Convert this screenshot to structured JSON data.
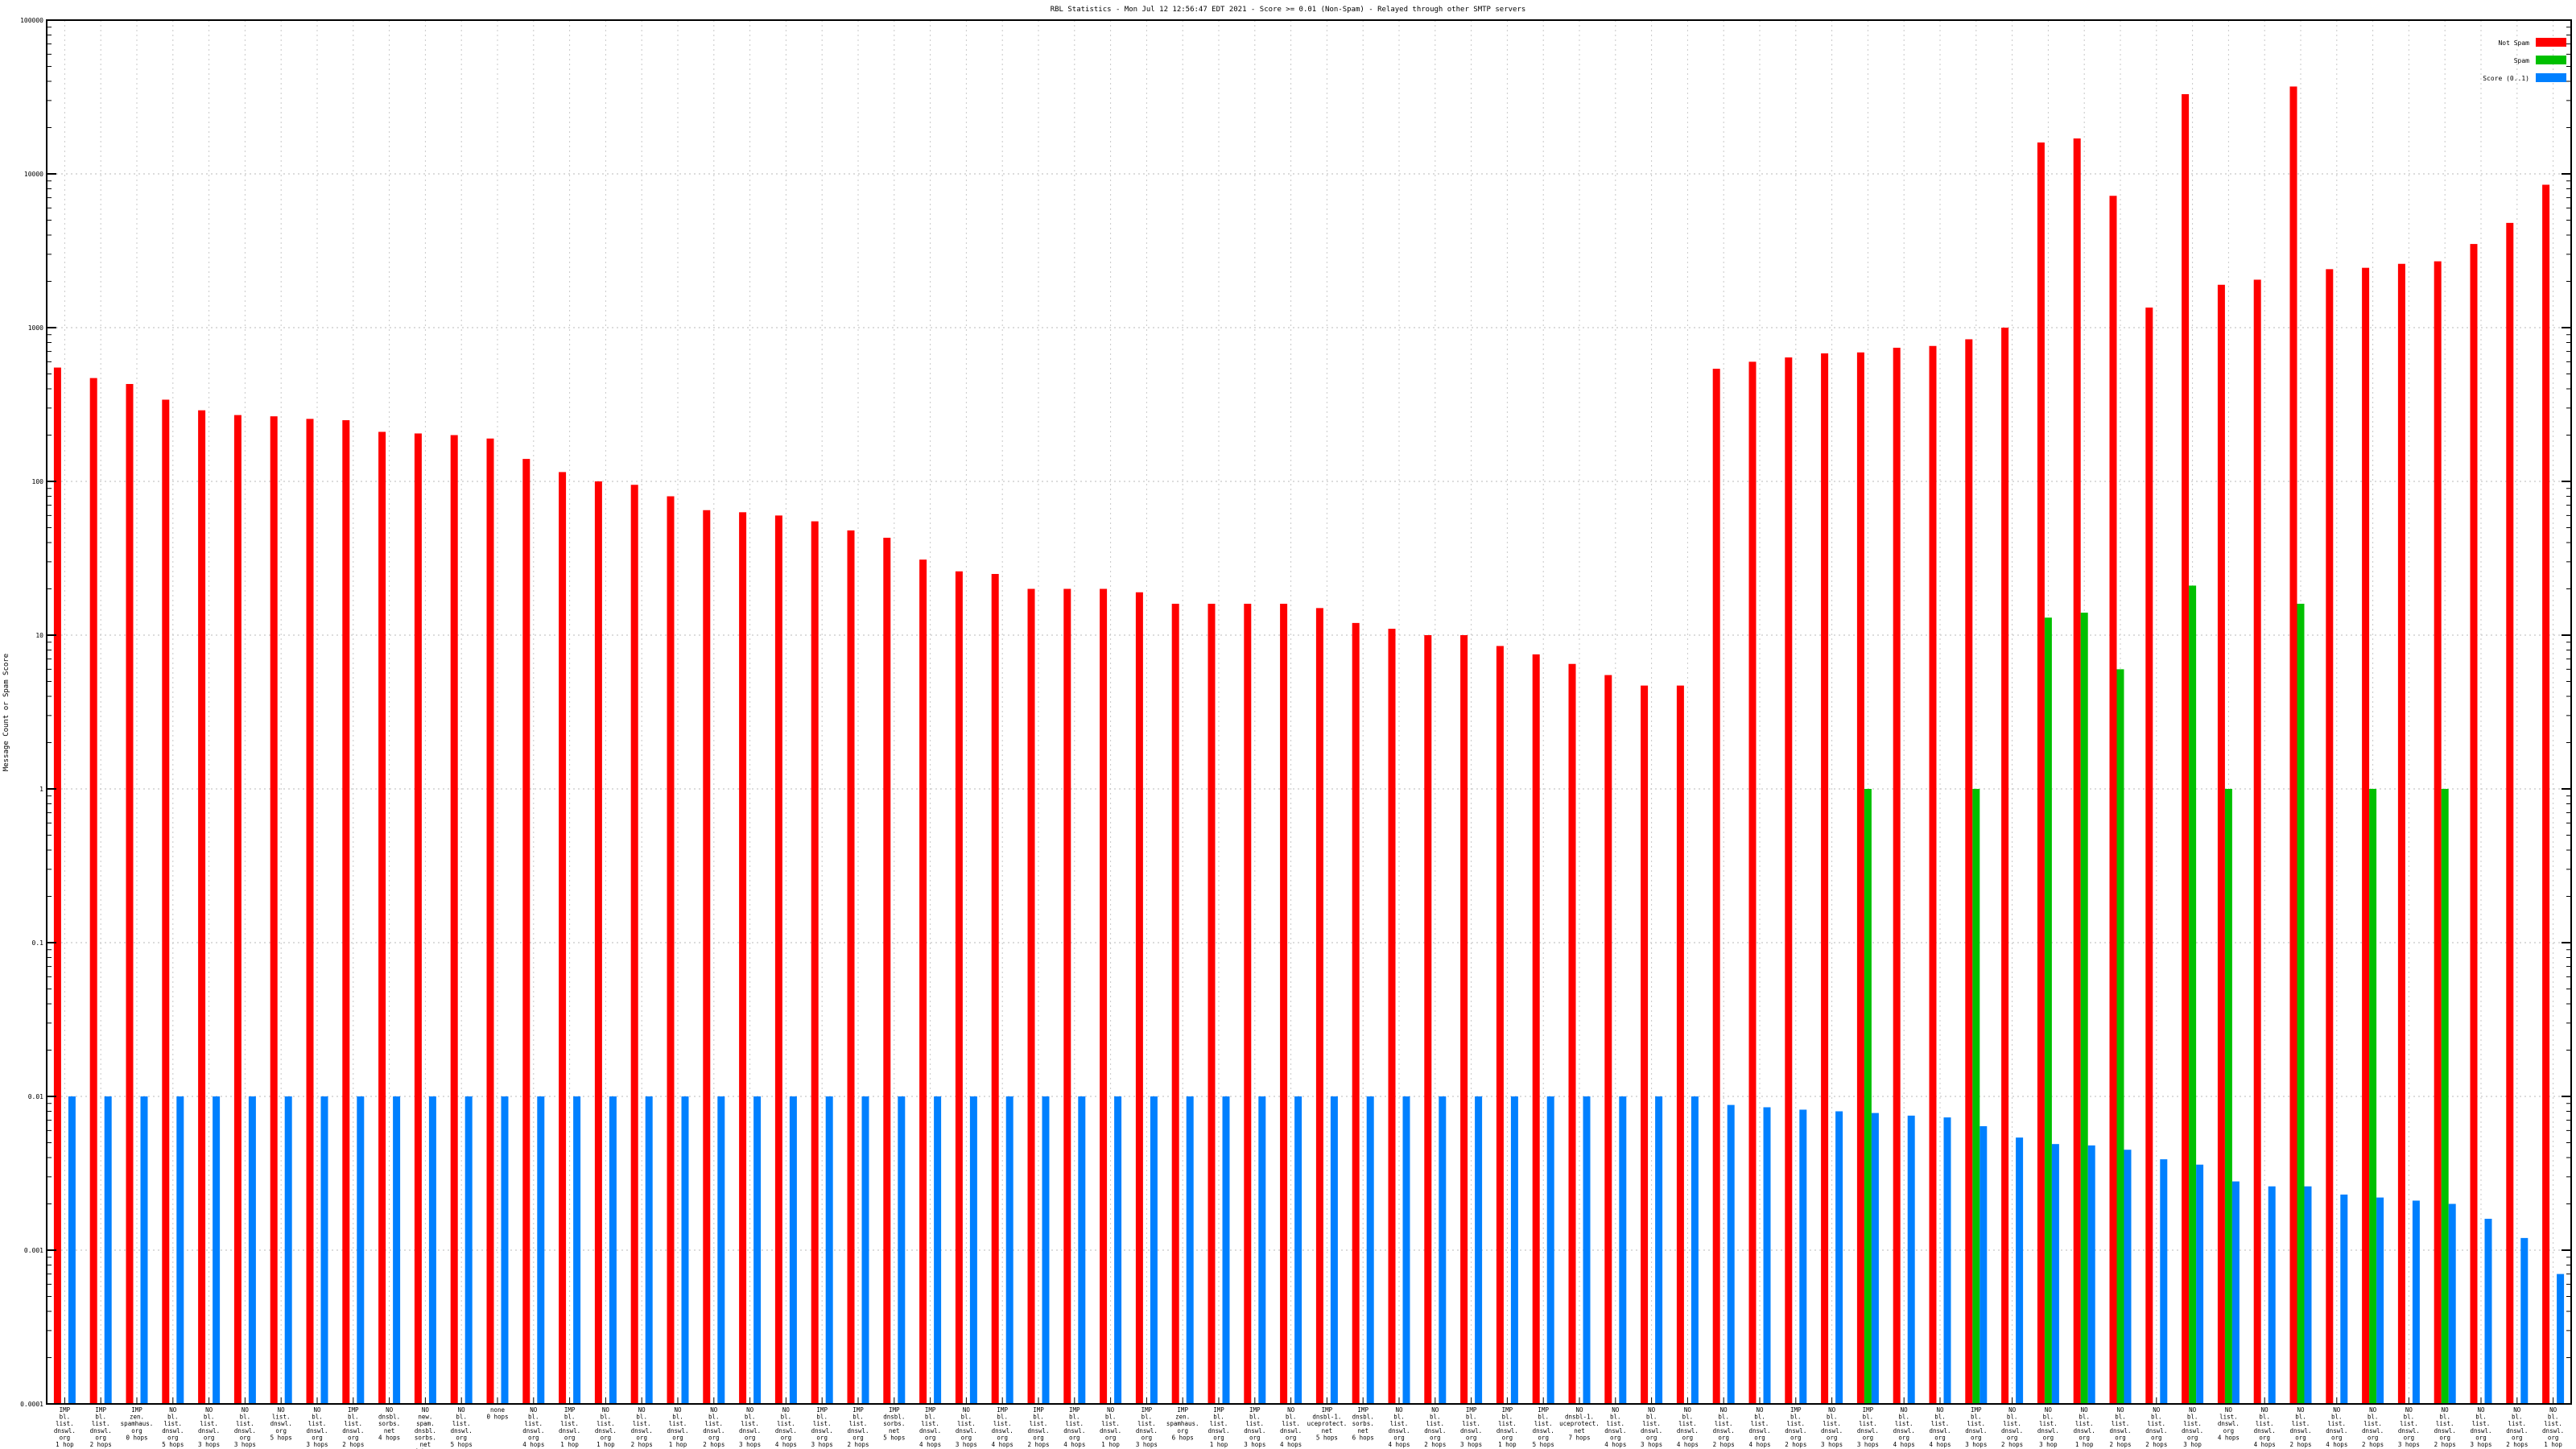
{
  "chart_data": {
    "type": "bar",
    "title": "RBL Statistics - Mon Jul 12 12:56:47 EDT 2021 - Score >= 0.01 (Non-Spam) - Relayed through other SMTP servers",
    "xlabel": "",
    "ylabel": "Message Count or Spam Score",
    "log_scale": true,
    "ylim": [
      0.0001,
      100000
    ],
    "y_ticks": [
      "0.0001",
      "0.001",
      "0.01",
      "0.1",
      "1",
      "10",
      "100",
      "1000",
      "10000",
      "100000"
    ],
    "grid": true,
    "legend_position": "top-right",
    "colors": {
      "not_spam": "#ff0000",
      "spam": "#00c000",
      "score": "#0080ff"
    },
    "series": [
      {
        "name": "Not Spam",
        "values": [
          550,
          470,
          430,
          340,
          290,
          270,
          265,
          255,
          250,
          210,
          205,
          200,
          190,
          140,
          115,
          100,
          95,
          80,
          65,
          63,
          60,
          55,
          48,
          43,
          31,
          26,
          25,
          20,
          20,
          20,
          19,
          16,
          16,
          16,
          16,
          15,
          12,
          11,
          10,
          10,
          8.5,
          7.5,
          6.5,
          5.5,
          4.7,
          4.7,
          540,
          600,
          640,
          680,
          690,
          740,
          760,
          840,
          1000,
          16000,
          17000,
          7200,
          1350,
          33000,
          1900,
          2050,
          37000,
          2400,
          2450,
          2600,
          2700,
          3500,
          4800,
          8500
        ]
      },
      {
        "name": "Spam",
        "values": [
          null,
          null,
          null,
          null,
          null,
          null,
          null,
          null,
          null,
          null,
          null,
          null,
          null,
          null,
          null,
          null,
          null,
          null,
          null,
          null,
          null,
          null,
          null,
          null,
          null,
          null,
          null,
          null,
          null,
          null,
          null,
          null,
          null,
          null,
          null,
          null,
          null,
          null,
          null,
          null,
          null,
          null,
          null,
          null,
          null,
          null,
          null,
          null,
          null,
          null,
          1,
          null,
          null,
          1,
          null,
          13,
          14,
          6,
          null,
          21,
          1,
          null,
          16,
          null,
          1,
          null,
          1,
          null,
          null,
          null
        ]
      },
      {
        "name": "Score (0..1)",
        "values": [
          0.01,
          0.01,
          0.01,
          0.01,
          0.01,
          0.01,
          0.01,
          0.01,
          0.01,
          0.01,
          0.01,
          0.01,
          0.01,
          0.01,
          0.01,
          0.01,
          0.01,
          0.01,
          0.01,
          0.01,
          0.01,
          0.01,
          0.01,
          0.01,
          0.01,
          0.01,
          0.01,
          0.01,
          0.01,
          0.01,
          0.01,
          0.01,
          0.01,
          0.01,
          0.01,
          0.01,
          0.01,
          0.01,
          0.01,
          0.01,
          0.01,
          0.01,
          0.01,
          0.01,
          0.01,
          0.01,
          0.0088,
          0.0085,
          0.0082,
          0.008,
          0.0078,
          0.0075,
          0.0073,
          0.0064,
          0.0054,
          0.0049,
          0.0048,
          0.0045,
          0.0039,
          0.0036,
          0.0028,
          0.0026,
          0.0026,
          0.0023,
          0.0022,
          0.0021,
          0.002,
          0.0016,
          0.0012,
          0.0007
        ]
      }
    ],
    "categories": [
      [
        "IMP",
        "bl.",
        "list.",
        "dnswl.",
        "org",
        "1 hop"
      ],
      [
        "IMP",
        "bl.",
        "list.",
        "dnswl.",
        "org",
        "2 hops"
      ],
      [
        "IMP",
        "zen.",
        "spamhaus.",
        "org",
        "0 hops"
      ],
      [
        "NO",
        "bl.",
        "list.",
        "dnswl.",
        "org",
        "5 hops"
      ],
      [
        "NO",
        "bl.",
        "list.",
        "dnswl.",
        "org",
        "3 hops"
      ],
      [
        "NO",
        "bl.",
        "list.",
        "dnswl.",
        "org",
        "3 hops"
      ],
      [
        "NO",
        "list.",
        "dnswl.",
        "org",
        "5 hops"
      ],
      [
        "NO",
        "bl.",
        "list.",
        "dnswl.",
        "org",
        "3 hops"
      ],
      [
        "IMP",
        "bl.",
        "list.",
        "dnswl.",
        "org",
        "2 hops"
      ],
      [
        "NO",
        "dnsbl.",
        "sorbs.",
        "net",
        "4 hops"
      ],
      [
        "NO",
        "new.",
        "spam.",
        "dnsbl.",
        "sorbs.",
        "net",
        "4 hops"
      ],
      [
        "NO",
        "bl.",
        "list.",
        "dnswl.",
        "org",
        "5 hops"
      ],
      [
        "none",
        "0 hops"
      ],
      [
        "NO",
        "bl.",
        "list.",
        "dnswl.",
        "org",
        "4 hops"
      ],
      [
        "IMP",
        "bl.",
        "list.",
        "dnswl.",
        "org",
        "1 hop"
      ],
      [
        "NO",
        "bl.",
        "list.",
        "dnswl.",
        "org",
        "1 hop"
      ],
      [
        "NO",
        "bl.",
        "list.",
        "dnswl.",
        "org",
        "2 hops"
      ],
      [
        "NO",
        "bl.",
        "list.",
        "dnswl.",
        "org",
        "1 hop"
      ],
      [
        "NO",
        "bl.",
        "list.",
        "dnswl.",
        "org",
        "2 hops"
      ],
      [
        "NO",
        "bl.",
        "list.",
        "dnswl.",
        "org",
        "3 hops"
      ],
      [
        "NO",
        "bl.",
        "list.",
        "dnswl.",
        "org",
        "4 hops"
      ],
      [
        "IMP",
        "bl.",
        "list.",
        "dnswl.",
        "org",
        "3 hops"
      ],
      [
        "IMP",
        "bl.",
        "list.",
        "dnswl.",
        "org",
        "2 hops"
      ],
      [
        "IMP",
        "dnsbl.",
        "sorbs.",
        "net",
        "5 hops"
      ],
      [
        "IMP",
        "bl.",
        "list.",
        "dnswl.",
        "org",
        "4 hops"
      ],
      [
        "NO",
        "bl.",
        "list.",
        "dnswl.",
        "org",
        "3 hops"
      ],
      [
        "IMP",
        "bl.",
        "list.",
        "dnswl.",
        "org",
        "4 hops"
      ],
      [
        "IMP",
        "bl.",
        "list.",
        "dnswl.",
        "org",
        "2 hops"
      ],
      [
        "IMP",
        "bl.",
        "list.",
        "dnswl.",
        "org",
        "4 hops"
      ],
      [
        "NO",
        "bl.",
        "list.",
        "dnswl.",
        "org",
        "1 hop"
      ],
      [
        "IMP",
        "bl.",
        "list.",
        "dnswl.",
        "org",
        "3 hops"
      ],
      [
        "IMP",
        "zen.",
        "spamhaus.",
        "org",
        "6 hops"
      ],
      [
        "IMP",
        "bl.",
        "list.",
        "dnswl.",
        "org",
        "1 hop"
      ],
      [
        "IMP",
        "bl.",
        "list.",
        "dnswl.",
        "org",
        "3 hops"
      ],
      [
        "NO",
        "bl.",
        "list.",
        "dnswl.",
        "org",
        "4 hops"
      ],
      [
        "IMP",
        "dnsbl-1.",
        "uceprotect.",
        "net",
        "5 hops"
      ],
      [
        "IMP",
        "dnsbl.",
        "sorbs.",
        "net",
        "6 hops"
      ],
      [
        "NO",
        "bl.",
        "list.",
        "dnswl.",
        "org",
        "4 hops"
      ],
      [
        "NO",
        "bl.",
        "list.",
        "dnswl.",
        "org",
        "2 hops"
      ],
      [
        "IMP",
        "bl.",
        "list.",
        "dnswl.",
        "org",
        "3 hops"
      ],
      [
        "IMP",
        "bl.",
        "list.",
        "dnswl.",
        "org",
        "1 hop"
      ],
      [
        "IMP",
        "bl.",
        "list.",
        "dnswl.",
        "org",
        "5 hops"
      ],
      [
        "NO",
        "dnsbl-1.",
        "uceprotect.",
        "net",
        "7 hops"
      ],
      [
        "NO",
        "bl.",
        "list.",
        "dnswl.",
        "org",
        "4 hops"
      ],
      [
        "NO",
        "bl.",
        "list.",
        "dnswl.",
        "org",
        "3 hops"
      ],
      [
        "NO",
        "bl.",
        "list.",
        "dnswl.",
        "org",
        "4 hops"
      ],
      [
        "NO",
        "bl.",
        "list.",
        "dnswl.",
        "org",
        "2 hops"
      ],
      [
        "NO",
        "bl.",
        "list.",
        "dnswl.",
        "org",
        "4 hops"
      ],
      [
        "IMP",
        "bl.",
        "list.",
        "dnswl.",
        "org",
        "2 hops"
      ],
      [
        "NO",
        "bl.",
        "list.",
        "dnswl.",
        "org",
        "3 hops"
      ],
      [
        "IMP",
        "bl.",
        "list.",
        "dnswl.",
        "org",
        "3 hops"
      ],
      [
        "NO",
        "bl.",
        "list.",
        "dnswl.",
        "org",
        "4 hops"
      ],
      [
        "NO",
        "bl.",
        "list.",
        "dnswl.",
        "org",
        "4 hops"
      ],
      [
        "IMP",
        "bl.",
        "list.",
        "dnswl.",
        "org",
        "3 hops"
      ],
      [
        "NO",
        "bl.",
        "list.",
        "dnswl.",
        "org",
        "2 hops"
      ],
      [
        "NO",
        "bl.",
        "list.",
        "dnswl.",
        "org",
        "3 hop"
      ],
      [
        "NO",
        "bl.",
        "list.",
        "dnswl.",
        "org",
        "1 hop"
      ],
      [
        "NO",
        "bl.",
        "list.",
        "dnswl.",
        "org",
        "2 hops"
      ],
      [
        "NO",
        "bl.",
        "list.",
        "dnswl.",
        "org",
        "2 hops"
      ],
      [
        "NO",
        "bl.",
        "list.",
        "dnswl.",
        "org",
        "3 hop"
      ],
      [
        "NO",
        "list.",
        "dnswl.",
        "org",
        "4 hops"
      ],
      [
        "NO",
        "bl.",
        "list.",
        "dnswl.",
        "org",
        "4 hops"
      ],
      [
        "NO",
        "bl.",
        "list.",
        "dnswl.",
        "org",
        "2 hops"
      ],
      [
        "NO",
        "bl.",
        "list.",
        "dnswl.",
        "org",
        "4 hops"
      ],
      [
        "NO",
        "bl.",
        "list.",
        "dnswl.",
        "org",
        "2 hops"
      ],
      [
        "NO",
        "bl.",
        "list.",
        "dnswl.",
        "org",
        "3 hops"
      ],
      [
        "NO",
        "bl.",
        "list.",
        "dnswl.",
        "org",
        "2 hops"
      ],
      [
        "NO",
        "bl.",
        "list.",
        "dnswl.",
        "org",
        "3 hops"
      ],
      [
        "NO",
        "bl.",
        "list.",
        "dnswl.",
        "org",
        "2 hops"
      ],
      [
        "NO",
        "bl.",
        "list.",
        "dnswl.",
        "org",
        "1 hop"
      ]
    ]
  }
}
